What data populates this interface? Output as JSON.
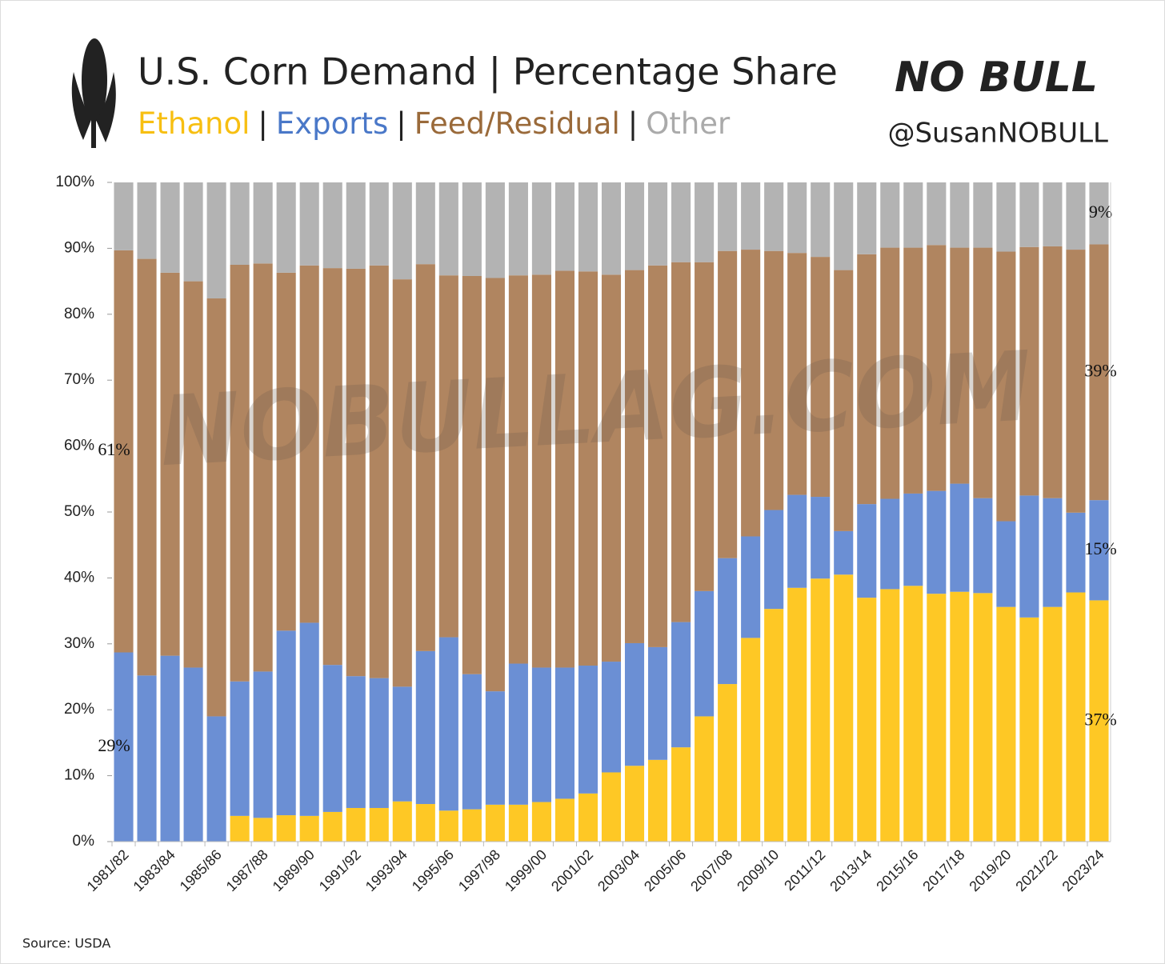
{
  "chart_data": {
    "type": "stacked_bar",
    "title": "U.S. Corn Demand | Percentage Share",
    "subtitle_separator": "|",
    "brand": "NO BULL",
    "handle": "@SusanNOBULL",
    "watermark": "NOBULLAG.COM",
    "source": "Source: USDA",
    "categories": [
      "1981/82",
      null,
      "1983/84",
      null,
      "1985/86",
      null,
      "1987/88",
      null,
      "1989/90",
      null,
      "1991/92",
      null,
      "1993/94",
      null,
      "1995/96",
      null,
      "1997/98",
      null,
      "1999/00",
      null,
      "2001/02",
      null,
      "2003/04",
      null,
      "2005/06",
      null,
      "2007/08",
      null,
      "2009/10",
      null,
      "2011/12",
      null,
      "2013/14",
      null,
      "2015/16",
      null,
      "2017/18",
      null,
      "2019/20",
      null,
      "2021/22",
      null,
      "2023/24"
    ],
    "series": [
      {
        "name": "Ethanol",
        "color": "#fec825",
        "text_color": "#f7bf12",
        "values": [
          0,
          0,
          0,
          0,
          0,
          3.9,
          3.6,
          4.0,
          3.9,
          4.5,
          5.1,
          5.1,
          6.1,
          5.7,
          4.7,
          4.9,
          5.6,
          5.6,
          6.0,
          6.5,
          7.3,
          10.5,
          11.5,
          12.4,
          14.3,
          19.0,
          23.9,
          30.9,
          35.3,
          38.5,
          39.9,
          40.5,
          37.0,
          38.3,
          38.8,
          37.6,
          37.9,
          37.7,
          35.6,
          34.0,
          35.6,
          37.8,
          36.6
        ],
        "value_labels": [
          null,
          null,
          null,
          null,
          null,
          null,
          null,
          null,
          null,
          null,
          null,
          null,
          null,
          null,
          null,
          null,
          null,
          null,
          null,
          null,
          null,
          null,
          null,
          null,
          null,
          null,
          null,
          null,
          null,
          null,
          null,
          null,
          null,
          null,
          null,
          null,
          null,
          null,
          null,
          null,
          null,
          null,
          "37%"
        ]
      },
      {
        "name": "Exports",
        "color": "#6b8fd4",
        "text_color": "#4a78c8",
        "values": [
          28.7,
          25.2,
          28.2,
          26.4,
          19.0,
          20.4,
          22.2,
          28.0,
          29.3,
          22.3,
          20.0,
          19.7,
          17.4,
          23.2,
          26.3,
          20.5,
          17.2,
          21.4,
          20.4,
          19.9,
          19.4,
          16.8,
          18.6,
          17.1,
          19.0,
          19.0,
          19.1,
          15.4,
          15.0,
          14.1,
          12.4,
          6.6,
          14.2,
          13.7,
          14.0,
          15.6,
          16.4,
          14.4,
          13.0,
          18.5,
          16.5,
          12.1,
          15.2
        ],
        "value_labels": [
          "29%",
          null,
          null,
          null,
          null,
          null,
          null,
          null,
          null,
          null,
          null,
          null,
          null,
          null,
          null,
          null,
          null,
          null,
          null,
          null,
          null,
          null,
          null,
          null,
          null,
          null,
          null,
          null,
          null,
          null,
          null,
          null,
          null,
          null,
          null,
          null,
          null,
          null,
          null,
          null,
          null,
          null,
          "15%"
        ]
      },
      {
        "name": "Feed/Residual",
        "color": "#b08560",
        "text_color": "#9a6a3a",
        "values": [
          61.0,
          63.2,
          58.1,
          58.6,
          63.4,
          63.2,
          61.9,
          54.3,
          54.2,
          60.2,
          61.8,
          62.6,
          61.8,
          58.7,
          54.9,
          60.4,
          62.7,
          58.9,
          59.6,
          60.2,
          59.8,
          58.7,
          56.6,
          57.9,
          54.6,
          49.9,
          46.6,
          43.5,
          39.3,
          36.7,
          36.4,
          39.6,
          37.9,
          38.1,
          37.3,
          37.3,
          35.8,
          38.0,
          40.9,
          37.7,
          38.2,
          39.9,
          38.8
        ],
        "value_labels": [
          "61%",
          null,
          null,
          null,
          null,
          null,
          null,
          null,
          null,
          null,
          null,
          null,
          null,
          null,
          null,
          null,
          null,
          null,
          null,
          null,
          null,
          null,
          null,
          null,
          null,
          null,
          null,
          null,
          null,
          null,
          null,
          null,
          null,
          null,
          null,
          null,
          null,
          null,
          null,
          null,
          null,
          null,
          "39%"
        ]
      },
      {
        "name": "Other",
        "color": "#b3b3b3",
        "text_color": "#aaaaaa",
        "values": [
          10.3,
          11.6,
          13.7,
          15.0,
          17.6,
          12.5,
          12.3,
          13.7,
          12.6,
          13.0,
          13.1,
          12.6,
          14.7,
          12.4,
          14.1,
          14.2,
          14.5,
          14.1,
          14.0,
          13.4,
          13.5,
          14.0,
          13.3,
          12.6,
          12.1,
          12.1,
          10.4,
          10.2,
          10.4,
          10.7,
          11.3,
          13.3,
          10.9,
          9.9,
          9.9,
          9.5,
          9.9,
          9.9,
          10.5,
          9.8,
          9.7,
          10.2,
          9.4
        ],
        "value_labels": [
          null,
          null,
          null,
          null,
          null,
          null,
          null,
          null,
          null,
          null,
          null,
          null,
          null,
          null,
          null,
          null,
          null,
          null,
          null,
          null,
          null,
          null,
          null,
          null,
          null,
          null,
          null,
          null,
          null,
          null,
          null,
          null,
          null,
          null,
          null,
          null,
          null,
          null,
          null,
          null,
          null,
          null,
          "9%"
        ]
      }
    ],
    "ylim": [
      0,
      100
    ],
    "yticks": [
      {
        "value": 0,
        "label": "0%"
      },
      {
        "value": 10,
        "label": "10%"
      },
      {
        "value": 20,
        "label": "20%"
      },
      {
        "value": 30,
        "label": "30%"
      },
      {
        "value": 40,
        "label": "40%"
      },
      {
        "value": 50,
        "label": "50%"
      },
      {
        "value": 60,
        "label": "60%"
      },
      {
        "value": 70,
        "label": "70%"
      },
      {
        "value": 80,
        "label": "80%"
      },
      {
        "value": 90,
        "label": "90%"
      },
      {
        "value": 100,
        "label": "100%"
      }
    ],
    "grid": false
  }
}
